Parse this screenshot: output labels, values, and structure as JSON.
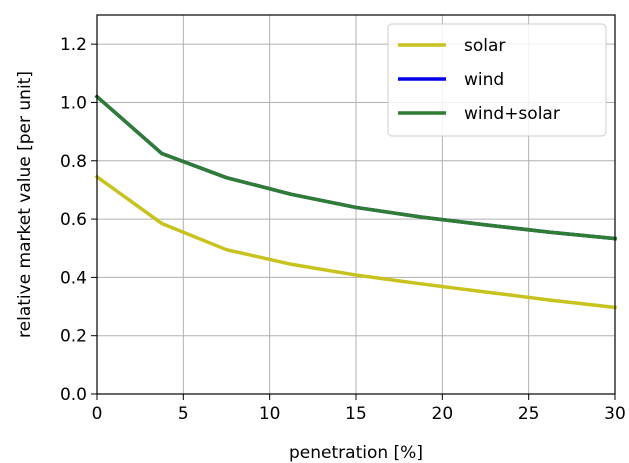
{
  "chart_data": {
    "type": "line",
    "xlabel": "penetration [%]",
    "ylabel": "relative market value [per unit]",
    "xlim": [
      0,
      30
    ],
    "ylim": [
      0,
      1.3
    ],
    "xticks": [
      0,
      5,
      10,
      15,
      20,
      25,
      30
    ],
    "xtick_labels": [
      "0",
      "5",
      "10",
      "15",
      "20",
      "25",
      "30"
    ],
    "yticks": [
      0,
      0.2,
      0.4,
      0.6,
      0.8,
      1.0,
      1.2
    ],
    "ytick_labels": [
      "0.0",
      "0.2",
      "0.4",
      "0.6",
      "0.8",
      "1.0",
      "1.2"
    ],
    "grid": true,
    "legend_position": "top-right",
    "series": [
      {
        "name": "solar",
        "color": "#c8c21e",
        "x": [
          0,
          3.75,
          7.5,
          11.25,
          15,
          18.75,
          22.5,
          26.25,
          30
        ],
        "y": [
          0.745,
          0.585,
          0.495,
          0.445,
          0.408,
          0.378,
          0.35,
          0.322,
          0.297
        ]
      },
      {
        "name": "wind",
        "color": "#0000e8",
        "x": [
          0,
          3.75,
          7.5,
          11.25,
          15,
          18.75,
          22.5,
          26.25,
          30
        ],
        "y": [
          1.02,
          0.825,
          0.742,
          0.685,
          0.64,
          0.607,
          0.58,
          0.555,
          0.533
        ]
      },
      {
        "name": "wind+solar",
        "color": "#2e7d32",
        "x": [
          0,
          3.75,
          7.5,
          11.25,
          15,
          18.75,
          22.5,
          26.25,
          30
        ],
        "y": [
          1.02,
          0.825,
          0.742,
          0.685,
          0.64,
          0.607,
          0.58,
          0.555,
          0.533
        ]
      }
    ]
  }
}
